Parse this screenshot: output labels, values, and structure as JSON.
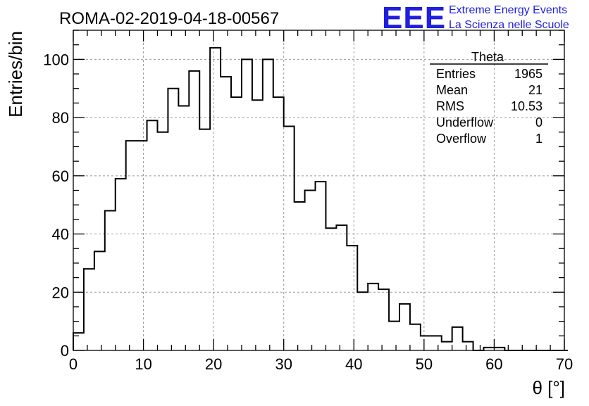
{
  "header": {
    "run_title": "ROMA-02-2019-04-18-00567",
    "logo_letters": "EEE",
    "logo_line1": "Extreme Energy Events",
    "logo_line2": "La Scienza nelle Scuole"
  },
  "colors": {
    "logo_blue": "#1f1fe0",
    "hist_line": "#000000",
    "grid": "#999999"
  },
  "stats": {
    "name": "Theta",
    "rows": [
      {
        "label": "Entries",
        "value": "1965"
      },
      {
        "label": "Mean",
        "value": "21"
      },
      {
        "label": "RMS",
        "value": "10.53"
      },
      {
        "label": "Underflow",
        "value": "0"
      },
      {
        "label": "Overflow",
        "value": "1"
      }
    ]
  },
  "chart_data": {
    "type": "histogram",
    "title": "ROMA-02-2019-04-18-00567",
    "xlabel": "θ [°]",
    "ylabel": "Entries/bin",
    "xlim": [
      0,
      70
    ],
    "ylim": [
      0,
      110
    ],
    "x_ticks": [
      0,
      10,
      20,
      30,
      40,
      50,
      60,
      70
    ],
    "y_ticks": [
      0,
      20,
      40,
      60,
      80,
      100
    ],
    "grid": true,
    "bin_width": 1.5,
    "bin_edges_start": 0,
    "values": [
      6,
      28,
      34,
      48,
      59,
      72,
      72,
      79,
      75,
      90,
      84,
      96,
      76,
      104,
      94,
      87,
      100,
      86,
      100,
      87,
      77,
      51,
      55,
      58,
      42,
      43,
      36,
      20,
      23,
      21,
      10,
      16,
      9,
      5,
      5,
      3,
      8,
      3,
      0,
      1,
      1,
      0,
      0,
      0,
      0,
      0,
      0
    ]
  }
}
